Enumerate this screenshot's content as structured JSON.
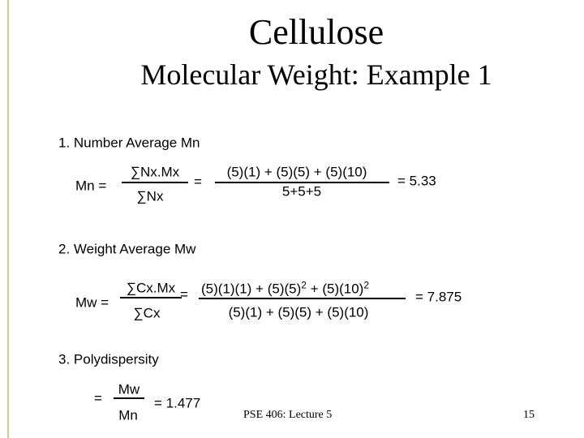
{
  "title": "Cellulose",
  "subtitle": "Molecular Weight: Example 1",
  "number_average": {
    "heading": "1. Number Average Mn",
    "lhs": "Mn =",
    "numerator": "∑Nx.Mx",
    "denominator": "∑Nx",
    "equals": "=",
    "expr_numerator": "(5)(1) + (5)(5) + (5)(10)",
    "expr_denominator": "5+5+5",
    "result": "= 5.33"
  },
  "weight_average": {
    "heading": "2. Weight Average Mw",
    "lhs": "Mw =",
    "numerator": "∑Cx.Mx",
    "denominator": "∑Cx",
    "equals": "=",
    "expr_numerator": [
      "(5)(1)(1) + (5)(5)",
      "2",
      " + (5)(10)",
      "2"
    ],
    "expr_denominator": "(5)(1) + (5)(5) + (5)(10)",
    "result": "= 7.875"
  },
  "polydispersity": {
    "heading": "3. Polydispersity",
    "lhs": "=",
    "numerator": "Mw",
    "denominator": "Mn",
    "result": "= 1.477"
  },
  "footer": {
    "lecture": "PSE 406: Lecture 5",
    "page": "15"
  }
}
